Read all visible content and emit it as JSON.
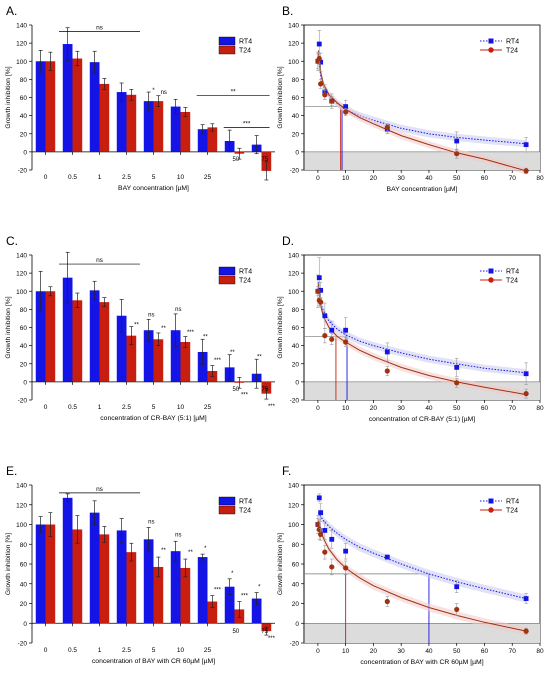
{
  "colors": {
    "rt4": "#1414e6",
    "t24": "#c81e10",
    "t24_fit": "#a0320f",
    "band": "#dcdcdc",
    "ci_blue": "#c8c8f0",
    "ci_red": "#f0c8c8"
  },
  "chart_data": [
    {
      "type": "bar",
      "panel_label": "A.",
      "categories": [
        "0",
        "0.5",
        "1",
        "2.5",
        "5",
        "10",
        "25",
        "50",
        "75"
      ],
      "ylabel": "Growth inhibition [%]",
      "xlabel": "BAY concentration [µM]",
      "ylim": [
        -20,
        140
      ],
      "yticks": [
        -20,
        0,
        20,
        40,
        60,
        80,
        100,
        120,
        140
      ],
      "legend": [
        "RT4",
        "T24"
      ],
      "legend_position": "top-right",
      "series": [
        {
          "name": "RT4",
          "values": [
            100,
            119,
            99,
            66,
            56,
            50,
            25,
            12,
            8
          ],
          "errors": [
            12,
            18,
            12,
            10,
            10,
            8,
            5,
            12,
            10
          ]
        },
        {
          "name": "T24",
          "values": [
            100,
            103,
            75,
            63,
            56,
            44,
            27,
            -2,
            -21
          ],
          "errors": [
            10,
            8,
            6,
            6,
            6,
            5,
            4,
            6,
            10
          ]
        }
      ],
      "brackets": [
        {
          "label": "ns",
          "from": 0.5,
          "to": 3.5,
          "y": 133
        },
        {
          "label": "**",
          "from": 5.6,
          "to": 8.3,
          "y": 62
        },
        {
          "label": "***",
          "from": 6.6,
          "to": 8.3,
          "y": 27
        }
      ],
      "marks": [
        {
          "label": "*",
          "x": 4,
          "y": 66
        },
        {
          "label": "ns",
          "x": 4.38,
          "y": 64
        },
        {
          "label": "50",
          "x": 7.05,
          "y": -10
        },
        {
          "label": "75",
          "x": 8.12,
          "y": -10
        }
      ]
    },
    {
      "type": "scatter",
      "panel_label": "B.",
      "xlabel": "BAY concentration [µM]",
      "ylabel": "Growth inhibition [%]",
      "xlim": [
        -5,
        80
      ],
      "xticks": [
        0,
        10,
        20,
        30,
        40,
        50,
        60,
        70,
        80
      ],
      "ylim": [
        -20,
        140
      ],
      "yticks": [
        -20,
        0,
        20,
        40,
        60,
        80,
        100,
        120,
        140
      ],
      "legend": [
        "RT4",
        "T24"
      ],
      "legend_position": "top-right",
      "series": [
        {
          "name": "RT4",
          "x": [
            0,
            0.5,
            1,
            2.5,
            5,
            10,
            25,
            50,
            75
          ],
          "y": [
            100,
            119,
            99,
            66,
            56,
            50,
            25,
            12,
            8
          ],
          "err": [
            10,
            15,
            10,
            8,
            8,
            7,
            5,
            10,
            8
          ]
        },
        {
          "name": "T24",
          "x": [
            0,
            0.5,
            1,
            2.5,
            5,
            10,
            25,
            50,
            75
          ],
          "y": [
            100,
            103,
            75,
            63,
            56,
            44,
            27,
            -2,
            -21
          ],
          "err": [
            8,
            6,
            5,
            5,
            5,
            4,
            4,
            5,
            3
          ]
        }
      ],
      "fits": [
        {
          "name": "RT4",
          "x": [
            0.2,
            1,
            2,
            4,
            7,
            10,
            15,
            20,
            30,
            40,
            50,
            60,
            75
          ],
          "y": [
            108,
            83,
            72,
            62,
            53,
            47,
            40,
            35,
            26,
            20,
            16,
            13,
            9
          ]
        },
        {
          "name": "T24",
          "x": [
            0.2,
            1,
            2,
            4,
            7,
            10,
            15,
            20,
            30,
            40,
            50,
            60,
            75
          ],
          "y": [
            112,
            88,
            75,
            63,
            54,
            47,
            38,
            31,
            18,
            8,
            -1,
            -8,
            -21
          ]
        }
      ],
      "ic50_lines": [
        {
          "series": "RT4",
          "x": 8.7
        },
        {
          "series": "T24",
          "x": 8.2
        }
      ]
    },
    {
      "type": "bar",
      "panel_label": "C.",
      "categories": [
        "0",
        "0.5",
        "1",
        "2.5",
        "5",
        "10",
        "25",
        "50",
        "75"
      ],
      "ylabel": "Growth inhibition [%]",
      "xlabel": "concentration of CR-BAY (5:1) [µM]",
      "ylim": [
        -20,
        140
      ],
      "yticks": [
        -20,
        0,
        20,
        40,
        60,
        80,
        100,
        120,
        140
      ],
      "legend": [
        "RT4",
        "T24"
      ],
      "legend_position": "top-right",
      "series": [
        {
          "name": "RT4",
          "values": [
            100,
            115,
            101,
            73,
            57,
            57,
            33,
            16,
            9
          ],
          "errors": [
            22,
            28,
            10,
            18,
            12,
            18,
            14,
            14,
            16
          ]
        },
        {
          "name": "T24",
          "values": [
            100,
            90,
            88,
            51,
            47,
            44,
            12,
            -1,
            -13
          ],
          "errors": [
            5,
            8,
            5,
            10,
            7,
            6,
            6,
            6,
            6
          ]
        }
      ],
      "brackets": [
        {
          "label": "ns",
          "from": 0.5,
          "to": 3.5,
          "y": 130
        }
      ],
      "marks": [
        {
          "label": "**",
          "x": 3.37,
          "y": 61
        },
        {
          "label": "ns",
          "x": 3.92,
          "y": 72
        },
        {
          "label": "**",
          "x": 4.37,
          "y": 57
        },
        {
          "label": "ns",
          "x": 4.92,
          "y": 78
        },
        {
          "label": "***",
          "x": 5.37,
          "y": 53
        },
        {
          "label": "**",
          "x": 5.92,
          "y": 48
        },
        {
          "label": "***",
          "x": 6.37,
          "y": 22
        },
        {
          "label": "**",
          "x": 6.92,
          "y": 31
        },
        {
          "label": "***",
          "x": 7.37,
          "y": -16
        },
        {
          "label": "**",
          "x": 7.92,
          "y": 26
        },
        {
          "label": "***",
          "x": 8.37,
          "y": -29
        },
        {
          "label": "50",
          "x": 7.05,
          "y": -10
        },
        {
          "label": "75",
          "x": 8.12,
          "y": -10
        }
      ]
    },
    {
      "type": "scatter",
      "panel_label": "D.",
      "xlabel": "concentration of CR-BAY (5:1) [µM]",
      "ylabel": "Growth inhibition [%]",
      "xlim": [
        -5,
        80
      ],
      "xticks": [
        0,
        10,
        20,
        30,
        40,
        50,
        60,
        70,
        80
      ],
      "ylim": [
        -20,
        140
      ],
      "yticks": [
        -20,
        0,
        20,
        40,
        60,
        80,
        100,
        120,
        140
      ],
      "legend": [
        "RT4",
        "T24"
      ],
      "legend_position": "top-right",
      "series": [
        {
          "name": "RT4",
          "x": [
            0,
            0.5,
            1,
            2.5,
            5,
            10,
            25,
            50,
            75
          ],
          "y": [
            100,
            115,
            101,
            73,
            57,
            57,
            33,
            16,
            9
          ],
          "err": [
            18,
            22,
            9,
            14,
            10,
            14,
            10,
            10,
            12
          ]
        },
        {
          "name": "T24",
          "x": [
            0,
            0.5,
            1,
            2.5,
            5,
            10,
            25,
            50,
            75
          ],
          "y": [
            100,
            90,
            88,
            51,
            47,
            44,
            12,
            -1,
            -13
          ],
          "err": [
            5,
            6,
            5,
            8,
            6,
            5,
            5,
            5,
            5
          ]
        }
      ],
      "fits": [
        {
          "name": "RT4",
          "x": [
            0.2,
            1,
            2,
            4,
            7,
            10,
            15,
            20,
            30,
            40,
            50,
            60,
            75
          ],
          "y": [
            110,
            88,
            78,
            67,
            58,
            52,
            45,
            40,
            32,
            25,
            20,
            15,
            10
          ]
        },
        {
          "name": "T24",
          "x": [
            0.2,
            1,
            2,
            4,
            7,
            10,
            15,
            20,
            30,
            40,
            50,
            60,
            75
          ],
          "y": [
            108,
            84,
            72,
            60,
            50,
            44,
            35,
            28,
            16,
            7,
            0,
            -6,
            -14
          ]
        }
      ],
      "ic50_lines": [
        {
          "series": "RT4",
          "x": 10.5
        },
        {
          "series": "T24",
          "x": 6.5
        }
      ]
    },
    {
      "type": "bar",
      "panel_label": "E.",
      "categories": [
        "0",
        "0.5",
        "1",
        "2.5",
        "5",
        "10",
        "25",
        "50",
        "75"
      ],
      "ylabel": "Growth inhibition [%]",
      "xlabel": "concentration of BAY with CR 60µM [µM]",
      "ylim": [
        -20,
        140
      ],
      "yticks": [
        -20,
        0,
        20,
        40,
        60,
        80,
        100,
        120,
        140
      ],
      "legend": [
        "RT4",
        "T24"
      ],
      "legend_position": "top-right",
      "series": [
        {
          "name": "RT4",
          "values": [
            100,
            127,
            112,
            94,
            85,
            73,
            67,
            37,
            25
          ],
          "errors": [
            8,
            4,
            12,
            12,
            12,
            10,
            3,
            8,
            6
          ]
        },
        {
          "name": "T24",
          "values": [
            100,
            95,
            90,
            72,
            57,
            56,
            22,
            14,
            -8
          ],
          "errors": [
            12,
            14,
            8,
            9,
            10,
            9,
            6,
            8,
            4
          ]
        }
      ],
      "brackets": [
        {
          "label": "ns",
          "from": 0.5,
          "to": 3.5,
          "y": 132
        }
      ],
      "marks": [
        {
          "label": "ns",
          "x": 3.92,
          "y": 101
        },
        {
          "label": "**",
          "x": 4.37,
          "y": 72
        },
        {
          "label": "ns",
          "x": 4.92,
          "y": 88
        },
        {
          "label": "**",
          "x": 5.37,
          "y": 70
        },
        {
          "label": "*",
          "x": 5.92,
          "y": 74
        },
        {
          "label": "***",
          "x": 6.37,
          "y": 32
        },
        {
          "label": "*",
          "x": 6.92,
          "y": 49
        },
        {
          "label": "***",
          "x": 7.37,
          "y": 26
        },
        {
          "label": "*",
          "x": 7.92,
          "y": 35
        },
        {
          "label": "***",
          "x": 8.37,
          "y": -17
        },
        {
          "label": "50",
          "x": 7.05,
          "y": -10
        },
        {
          "label": "75",
          "x": 8.12,
          "y": -10
        }
      ]
    },
    {
      "type": "scatter",
      "panel_label": "F.",
      "xlabel": "concentration of BAY with CR 60µM [µM]",
      "ylabel": "Growth inhibition [%]",
      "xlim": [
        -5,
        80
      ],
      "xticks": [
        0,
        10,
        20,
        30,
        40,
        50,
        60,
        70,
        80
      ],
      "ylim": [
        -20,
        140
      ],
      "yticks": [
        -20,
        0,
        20,
        40,
        60,
        80,
        100,
        120,
        140
      ],
      "legend": [
        "RT4",
        "T24"
      ],
      "legend_position": "top-right",
      "series": [
        {
          "name": "RT4",
          "x": [
            0,
            0.5,
            1,
            2.5,
            5,
            10,
            25,
            50,
            75
          ],
          "y": [
            100,
            127,
            112,
            94,
            85,
            73,
            67,
            37,
            25
          ],
          "err": [
            6,
            4,
            9,
            9,
            9,
            8,
            2,
            6,
            5
          ]
        },
        {
          "name": "T24",
          "x": [
            0,
            0.5,
            1,
            2.5,
            5,
            10,
            25,
            50,
            75
          ],
          "y": [
            100,
            95,
            90,
            72,
            57,
            56,
            22,
            14,
            -8
          ],
          "err": [
            9,
            10,
            6,
            7,
            8,
            7,
            5,
            6,
            3
          ]
        }
      ],
      "fits": [
        {
          "name": "RT4",
          "x": [
            0.2,
            1,
            2,
            4,
            7,
            10,
            15,
            20,
            30,
            40,
            50,
            60,
            75
          ],
          "y": [
            112,
            108,
            104,
            98,
            91,
            85,
            77,
            71,
            60,
            50,
            42,
            35,
            25
          ]
        },
        {
          "name": "T24",
          "x": [
            0.2,
            1,
            2,
            4,
            7,
            10,
            15,
            20,
            30,
            40,
            50,
            60,
            75
          ],
          "y": [
            104,
            95,
            86,
            75,
            64,
            56,
            46,
            38,
            26,
            16,
            8,
            1,
            -8
          ]
        }
      ],
      "ic50_lines": [
        {
          "series": "RT4",
          "x": 40
        },
        {
          "series": "T24",
          "x": 10
        }
      ]
    }
  ]
}
